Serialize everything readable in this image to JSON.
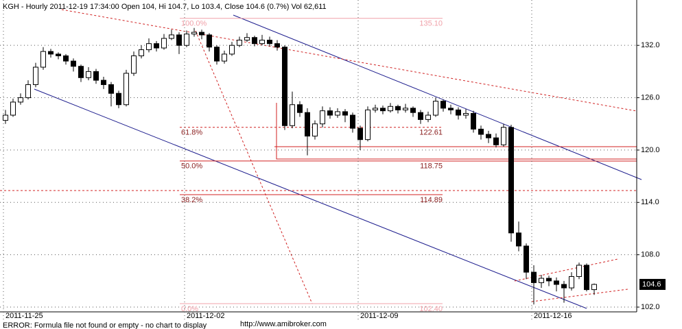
{
  "chart_data": {
    "type": "candlestick",
    "title": "KGH - Hourly 2011-12-19 17:34:00 Open 104, Hi 104.7, Lo 103.4, Close 104.6 (0.7%) Vol 62,611",
    "categories": [
      "2011-11-25",
      null,
      null,
      null,
      null,
      null,
      null,
      null,
      null,
      null,
      null,
      null,
      null,
      null,
      null,
      null,
      null,
      null,
      null,
      null,
      null,
      null,
      null,
      null,
      "2011-12-02",
      null,
      null,
      null,
      null,
      null,
      null,
      null,
      null,
      null,
      null,
      null,
      null,
      null,
      null,
      null,
      null,
      null,
      null,
      null,
      null,
      null,
      null,
      "2011-12-09",
      null,
      null,
      null,
      null,
      null,
      null,
      null,
      null,
      null,
      null,
      null,
      null,
      null,
      null,
      null,
      null,
      null,
      null,
      null,
      null,
      null,
      null,
      "2011-12-16",
      null,
      null,
      null,
      null,
      null,
      null,
      null,
      null
    ],
    "open": [
      123.4,
      124.0,
      125.5,
      126.0,
      127.5,
      129.5,
      131.3,
      131.0,
      130.8,
      130.2,
      129.6,
      128.3,
      129.0,
      128.0,
      127.5,
      126.5,
      125.2,
      128.8,
      130.8,
      131.5,
      132.2,
      131.7,
      132.8,
      133.2,
      132.0,
      133.3,
      133.5,
      133.2,
      131.8,
      130.2,
      131.0,
      132.0,
      132.6,
      132.9,
      132.2,
      132.6,
      132.2,
      131.8,
      122.8,
      125.2,
      124.3,
      121.6,
      123.0,
      124.5,
      124.0,
      124.4,
      124.0,
      122.5,
      121.2,
      124.6,
      124.8,
      124.5,
      125.0,
      124.6,
      124.8,
      124.3,
      123.5,
      124.0,
      125.6,
      124.8,
      124.6,
      124.0,
      124.2,
      122.4,
      121.8,
      121.4,
      120.6,
      122.6,
      110.5,
      109.0,
      106.0,
      104.8,
      105.3,
      105.0,
      104.6,
      104.2,
      105.5,
      106.8,
      104.0
    ],
    "high": [
      124.6,
      125.9,
      126.5,
      128.0,
      130.0,
      131.8,
      131.6,
      131.2,
      131.0,
      130.5,
      129.8,
      129.5,
      129.3,
      128.4,
      127.8,
      126.8,
      129.2,
      131.3,
      132.0,
      132.8,
      132.5,
      133.3,
      133.8,
      133.5,
      133.7,
      134.0,
      133.8,
      133.4,
      132.0,
      131.4,
      132.4,
      133.0,
      133.4,
      133.1,
      133.2,
      133.0,
      132.6,
      132.0,
      126.7,
      125.6,
      124.8,
      123.4,
      125.0,
      124.9,
      124.8,
      124.7,
      124.3,
      122.8,
      125.0,
      125.2,
      125.1,
      125.4,
      125.2,
      125.3,
      125.0,
      124.6,
      124.4,
      126.0,
      125.8,
      125.2,
      124.9,
      124.7,
      124.5,
      122.8,
      122.2,
      121.9,
      123.0,
      122.9,
      111.8,
      109.3,
      106.8,
      105.7,
      105.6,
      105.4,
      105.0,
      106.0,
      107.1,
      107.0,
      104.7
    ],
    "low": [
      123.0,
      123.8,
      125.2,
      125.8,
      127.2,
      129.2,
      130.6,
      130.4,
      129.8,
      129.0,
      127.8,
      128.0,
      127.6,
      127.0,
      125.0,
      124.8,
      125.0,
      128.5,
      130.5,
      131.2,
      131.3,
      131.5,
      132.6,
      131.0,
      131.8,
      133.0,
      132.7,
      131.3,
      129.8,
      129.9,
      130.8,
      131.8,
      132.4,
      131.9,
      132.0,
      131.9,
      131.4,
      122.3,
      122.5,
      123.8,
      119.4,
      121.2,
      122.6,
      123.6,
      123.7,
      123.2,
      122.0,
      120.0,
      121.0,
      124.3,
      124.1,
      124.3,
      124.2,
      124.3,
      123.8,
      123.0,
      123.2,
      123.8,
      124.4,
      124.1,
      123.5,
      123.6,
      122.0,
      121.2,
      120.8,
      120.3,
      120.4,
      109.5,
      108.4,
      105.2,
      102.3,
      104.2,
      104.4,
      103.8,
      102.5,
      103.9,
      105.2,
      103.8,
      103.4
    ],
    "close": [
      124.0,
      125.5,
      126.0,
      127.5,
      129.5,
      131.3,
      131.0,
      130.8,
      130.2,
      129.6,
      128.3,
      129.0,
      128.0,
      127.5,
      126.5,
      125.2,
      128.8,
      130.8,
      131.5,
      132.2,
      131.7,
      132.8,
      133.2,
      132.0,
      133.3,
      133.5,
      133.2,
      131.8,
      130.2,
      131.0,
      132.0,
      132.6,
      132.9,
      132.2,
      132.6,
      132.2,
      131.8,
      122.8,
      125.2,
      124.3,
      121.6,
      123.0,
      124.5,
      124.0,
      124.4,
      124.0,
      122.5,
      121.2,
      124.6,
      124.8,
      124.5,
      125.0,
      124.6,
      124.8,
      124.3,
      123.5,
      124.0,
      125.6,
      124.8,
      124.6,
      124.0,
      124.2,
      122.4,
      121.8,
      121.4,
      120.6,
      122.6,
      110.5,
      109.0,
      106.0,
      104.8,
      105.3,
      105.0,
      104.6,
      104.2,
      105.5,
      106.8,
      104.0,
      104.6
    ],
    "up_color": "#ffffff",
    "down_color": "#000000",
    "ylim": [
      101.5,
      137.2
    ],
    "yticks": [
      {
        "value": 102,
        "label": "102.0"
      },
      {
        "value": 108,
        "label": "108.0"
      },
      {
        "value": 114,
        "label": "114.0"
      },
      {
        "value": 120,
        "label": "120.0"
      },
      {
        "value": 126,
        "label": "126.0"
      },
      {
        "value": 132,
        "label": "132.0"
      }
    ],
    "grid": true,
    "last_price": 104.6,
    "fibonacci": [
      {
        "ratio": "100.0%",
        "level": {
          "value": 135.1,
          "label": "135.10"
        }
      },
      {
        "ratio": "61.8%",
        "level": 122.61
      },
      {
        "ratio": "50.0%",
        "level": 118.75
      },
      {
        "ratio": "38.2%",
        "level": 114.89
      },
      {
        "ratio": "0.0%",
        "level": {
          "value": 102.4,
          "label": "102.40"
        }
      }
    ]
  },
  "footer": {
    "error": "ERROR: Formula file not found or empty - no chart to display",
    "url": "http://www.amibroker.com"
  }
}
